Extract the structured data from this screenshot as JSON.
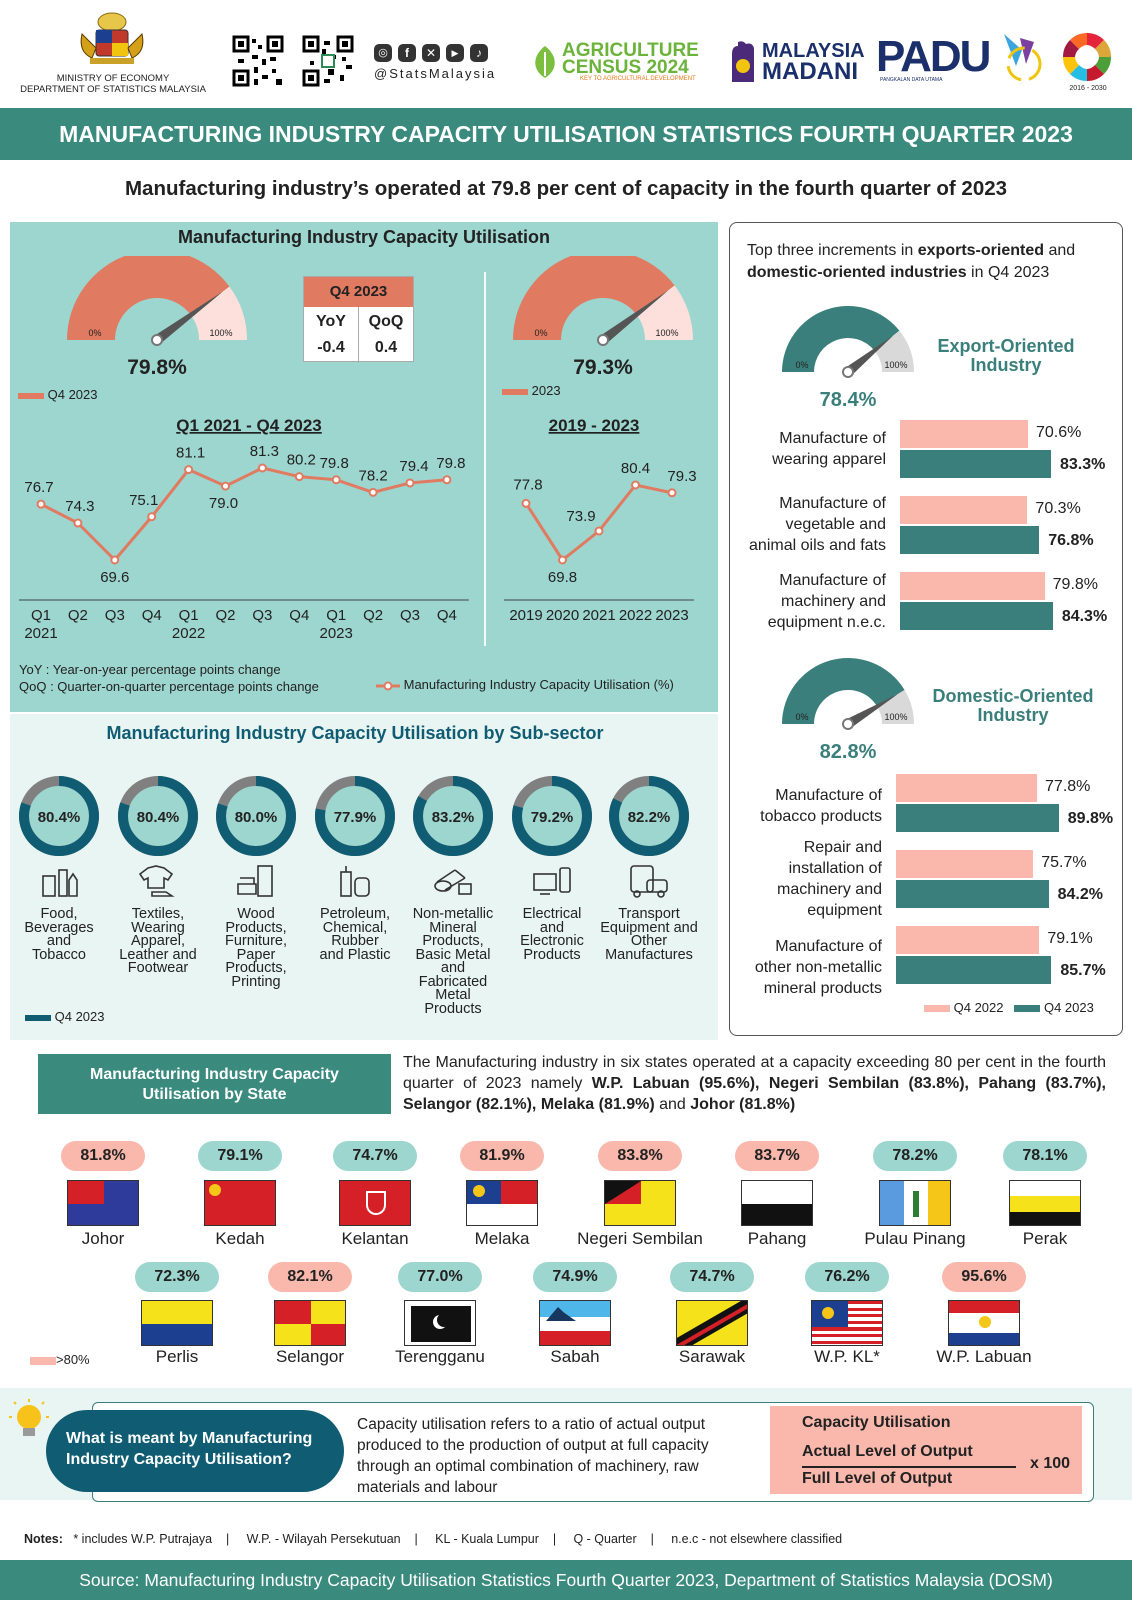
{
  "header": {
    "ministry_line1": "MINISTRY OF ECONOMY",
    "ministry_line2": "DEPARTMENT OF STATISTICS MALAYSIA",
    "social_handle": "@StatsMalaysia",
    "agri_line1": "AGRICULTURE",
    "agri_line2": "CENSUS 2024",
    "agri_line3": "KEY TO AGRICULTURAL DEVELOPMENT",
    "madani_line1": "MALAYSIA",
    "madani_line2": "MADANI",
    "padu": "PADU",
    "padu_sub": "PANGKALAN DATA UTAMA",
    "sdg_years": "2016 - 2030"
  },
  "title": "MANUFACTURING INDUSTRY CAPACITY UTILISATION STATISTICS FOURTH QUARTER 2023",
  "headline": "Manufacturing industry’s operated at 79.8 per cent of capacity in the fourth quarter of 2023",
  "colors": {
    "teal": "#3a7f7b",
    "teal_bg": "#9dd5cf",
    "light_bg": "#e9f5f3",
    "salmon": "#e07a60",
    "pink": "#f9b8ab",
    "dark_teal": "#0f5c73",
    "gauge_light": "#fde0dc"
  },
  "main_panel": {
    "title": "Manufacturing Industry Capacity Utilisation",
    "gauge_q4": {
      "value": 79.8,
      "label": "79.8%",
      "min_label": "0%",
      "max_label": "100%",
      "legend": "Q4 2023"
    },
    "box": {
      "header": "Q4 2023",
      "yoy_label": "YoY",
      "qoq_label": "QoQ",
      "yoy": "-0.4",
      "qoq": "0.4"
    },
    "gauge_year": {
      "value": 79.3,
      "label": "79.3%",
      "min_label": "0%",
      "max_label": "100%",
      "legend": "2023"
    },
    "notes": {
      "yoy": "YoY : Year-on-year percentage points change",
      "qoq": "QoQ : Quarter-on-quarter percentage points change",
      "series_legend": "Manufacturing Industry Capacity Utilisation (%)"
    }
  },
  "chart_data": [
    {
      "type": "line",
      "title": "Q1 2021 - Q4 2023",
      "categories": [
        "Q1",
        "Q2",
        "Q3",
        "Q4",
        "Q1",
        "Q2",
        "Q3",
        "Q4",
        "Q1",
        "Q2",
        "Q3",
        "Q4"
      ],
      "year_labels": [
        "2021",
        "2022",
        "2023"
      ],
      "values": [
        76.7,
        74.3,
        69.6,
        75.1,
        81.1,
        79.0,
        81.3,
        80.2,
        79.8,
        78.2,
        79.4,
        79.8
      ],
      "value_labels": [
        "76.7",
        "74.3",
        "69.6",
        "75.1",
        "81.1",
        "79.0",
        "81.3",
        "80.2",
        "79.8",
        "78.2",
        "79.4",
        "79.8"
      ]
    },
    {
      "type": "line",
      "title": "2019 - 2023",
      "categories": [
        "2019",
        "2020",
        "2021",
        "2022",
        "2023"
      ],
      "values": [
        77.8,
        69.8,
        73.9,
        80.4,
        79.3
      ],
      "value_labels": [
        "77.8",
        "69.8",
        "73.9",
        "80.4",
        "79.3"
      ]
    },
    {
      "type": "bar",
      "title": "Export-Oriented Industry",
      "categories": [
        "Manufacture of wearing apparel",
        "Manufacture of vegetable and animal oils and fats",
        "Manufacture of machinery and equipment n.e.c."
      ],
      "series": [
        {
          "name": "Q4 2022",
          "values": [
            70.6,
            70.3,
            79.8
          ]
        },
        {
          "name": "Q4 2023",
          "values": [
            83.3,
            76.8,
            84.3
          ]
        }
      ]
    },
    {
      "type": "bar",
      "title": "Domestic-Oriented Industry",
      "categories": [
        "Manufacture of tobacco products",
        "Repair and installation of machinery and equipment",
        "Manufacture of other non-metallic mineral products"
      ],
      "series": [
        {
          "name": "Q4 2022",
          "values": [
            77.8,
            75.7,
            79.1
          ]
        },
        {
          "name": "Q4 2023",
          "values": [
            89.8,
            84.2,
            85.7
          ]
        }
      ]
    },
    {
      "type": "pie",
      "title": "Manufacturing Industry Capacity Utilisation by Sub-sector",
      "categories": [
        "Food, Beverages and Tobacco",
        "Textiles, Wearing Apparel, Leather and Footwear",
        "Wood Products, Furniture, Paper Products, Printing",
        "Petroleum, Chemical, Rubber and Plastic",
        "Non-metallic Mineral Products, Basic Metal and Fabricated Metal Products",
        "Electrical and Electronic Products",
        "Transport Equipment and Other Manufactures"
      ],
      "values": [
        80.4,
        80.4,
        80.0,
        77.9,
        83.2,
        79.2,
        82.2
      ]
    }
  ],
  "right_panel": {
    "intro_a": "Top three increments in ",
    "intro_b": "exports-oriented",
    "intro_c": " and ",
    "intro_d": "domestic-oriented industries",
    "intro_e": " in Q4 2023",
    "export": {
      "title_line1": "Export-Oriented",
      "title_line2": "Industry",
      "gauge_value": 78.4,
      "gauge_label": "78.4%",
      "min_label": "0%",
      "max_label": "100%",
      "items": [
        {
          "label_lines": [
            "Manufacture of",
            "wearing apparel"
          ],
          "v2022": 70.6,
          "v2023": 83.3,
          "l2022": "70.6%",
          "l2023": "83.3%"
        },
        {
          "label_lines": [
            "Manufacture of",
            "vegetable and",
            "animal oils and fats"
          ],
          "v2022": 70.3,
          "v2023": 76.8,
          "l2022": "70.3%",
          "l2023": "76.8%"
        },
        {
          "label_lines": [
            "Manufacture of",
            "machinery and",
            "equipment n.e.c."
          ],
          "v2022": 79.8,
          "v2023": 84.3,
          "l2022": "79.8%",
          "l2023": "84.3%"
        }
      ]
    },
    "domestic": {
      "title_line1": "Domestic-Oriented",
      "title_line2": "Industry",
      "gauge_value": 82.8,
      "gauge_label": "82.8%",
      "min_label": "0%",
      "max_label": "100%",
      "items": [
        {
          "label_lines": [
            "Manufacture of",
            "tobacco products"
          ],
          "v2022": 77.8,
          "v2023": 89.8,
          "l2022": "77.8%",
          "l2023": "89.8%"
        },
        {
          "label_lines": [
            "Repair and",
            "installation of",
            "machinery and",
            "equipment"
          ],
          "v2022": 75.7,
          "v2023": 84.2,
          "l2022": "75.7%",
          "l2023": "84.2%"
        },
        {
          "label_lines": [
            "Manufacture of",
            "other non-metallic",
            "mineral products"
          ],
          "v2022": 79.1,
          "v2023": 85.7,
          "l2022": "79.1%",
          "l2023": "85.7%"
        }
      ]
    },
    "legend_2022": "Q4 2022",
    "legend_2023": "Q4 2023"
  },
  "subsector": {
    "title": "Manufacturing Industry Capacity Utilisation by Sub-sector",
    "legend": "Q4 2023",
    "items": [
      {
        "value": 80.4,
        "label": "80.4%",
        "name_lines": [
          "Food,",
          "Beverages",
          "and",
          "Tobacco"
        ],
        "icon": "food-beverage-icon"
      },
      {
        "value": 80.4,
        "label": "80.4%",
        "name_lines": [
          "Textiles,",
          "Wearing",
          "Apparel,",
          "Leather and",
          "Footwear"
        ],
        "icon": "shirt-shoe-icon"
      },
      {
        "value": 80.0,
        "label": "80.0%",
        "name_lines": [
          "Wood",
          "Products,",
          "Furniture,",
          "Paper",
          "Products,",
          "Printing"
        ],
        "icon": "furniture-icon"
      },
      {
        "value": 77.9,
        "label": "77.9%",
        "name_lines": [
          "Petroleum,",
          "Chemical,",
          "Rubber",
          "and Plastic"
        ],
        "icon": "refinery-icon"
      },
      {
        "value": 83.2,
        "label": "83.2%",
        "name_lines": [
          "Non-metallic",
          "Mineral",
          "Products,",
          "Basic Metal",
          "and",
          "Fabricated",
          "Metal",
          "Products"
        ],
        "icon": "metal-pipes-icon"
      },
      {
        "value": 79.2,
        "label": "79.2%",
        "name_lines": [
          "Electrical",
          "and",
          "Electronic",
          "Products"
        ],
        "icon": "tv-phone-icon"
      },
      {
        "value": 82.2,
        "label": "82.2%",
        "name_lines": [
          "Transport",
          "Equipment and",
          "Other",
          "Manufactures"
        ],
        "icon": "bus-car-icon"
      }
    ]
  },
  "state": {
    "box_title_line1": "Manufacturing Industry Capacity",
    "box_title_line2": "Utilisation by State",
    "text_a": "The Manufacturing industry in six states operated at a capacity exceeding 80 per cent in the fourth quarter of 2023 namely ",
    "text_b": "W.P. Labuan (95.6%), Negeri Sembilan (83.8%), Pahang (83.7%), Selangor (82.1%), Melaka (81.9%)",
    "text_c": " and ",
    "text_d": "Johor (81.8%)",
    "legend": ">80%",
    "states": [
      {
        "name": "Johor",
        "value": 81.8,
        "label": "81.8%",
        "above": true,
        "flag": "johor-flag-icon"
      },
      {
        "name": "Kedah",
        "value": 79.1,
        "label": "79.1%",
        "above": false,
        "flag": "kedah-flag-icon"
      },
      {
        "name": "Kelantan",
        "value": 74.7,
        "label": "74.7%",
        "above": false,
        "flag": "kelantan-flag-icon"
      },
      {
        "name": "Melaka",
        "value": 81.9,
        "label": "81.9%",
        "above": true,
        "flag": "melaka-flag-icon"
      },
      {
        "name": "Negeri Sembilan",
        "value": 83.8,
        "label": "83.8%",
        "above": true,
        "flag": "negeri-sembilan-flag-icon"
      },
      {
        "name": "Pahang",
        "value": 83.7,
        "label": "83.7%",
        "above": true,
        "flag": "pahang-flag-icon"
      },
      {
        "name": "Pulau Pinang",
        "value": 78.2,
        "label": "78.2%",
        "above": false,
        "flag": "pulau-pinang-flag-icon"
      },
      {
        "name": "Perak",
        "value": 78.1,
        "label": "78.1%",
        "above": false,
        "flag": "perak-flag-icon"
      },
      {
        "name": "Perlis",
        "value": 72.3,
        "label": "72.3%",
        "above": false,
        "flag": "perlis-flag-icon"
      },
      {
        "name": "Selangor",
        "value": 82.1,
        "label": "82.1%",
        "above": true,
        "flag": "selangor-flag-icon"
      },
      {
        "name": "Terengganu",
        "value": 77.0,
        "label": "77.0%",
        "above": false,
        "flag": "terengganu-flag-icon"
      },
      {
        "name": "Sabah",
        "value": 74.9,
        "label": "74.9%",
        "above": false,
        "flag": "sabah-flag-icon"
      },
      {
        "name": "Sarawak",
        "value": 74.7,
        "label": "74.7%",
        "above": false,
        "flag": "sarawak-flag-icon"
      },
      {
        "name": "W.P. KL*",
        "value": 76.2,
        "label": "76.2%",
        "above": false,
        "flag": "wp-kl-flag-icon"
      },
      {
        "name": "W.P. Labuan",
        "value": 95.6,
        "label": "95.6%",
        "above": true,
        "flag": "wp-labuan-flag-icon"
      }
    ]
  },
  "definition": {
    "question_line1": "What is meant by Manufacturing",
    "question_line2": "Industry Capacity Utilisation?",
    "text_line1": "Capacity utilisation refers to a ratio of actual output",
    "text_line2": "produced to the production of output at full capacity",
    "text_line3": "through an optimal combination of machinery, raw",
    "text_line4": "materials and labour",
    "formula_title": "Capacity Utilisation",
    "numerator": "Actual Level of Output",
    "denominator": "Full Level of Output",
    "equals": "=",
    "times": "x 100"
  },
  "notes": {
    "label": "Notes:",
    "n1": "* includes W.P. Putrajaya",
    "n2": "W.P. - Wilayah Persekutuan",
    "n3": "KL - Kuala Lumpur",
    "n4": "Q - Quarter",
    "n5": "n.e.c - not elsewhere classified",
    "sep": "|"
  },
  "source": "Source: Manufacturing Industry Capacity Utilisation Statistics Fourth Quarter 2023, Department of Statistics Malaysia (DOSM)"
}
